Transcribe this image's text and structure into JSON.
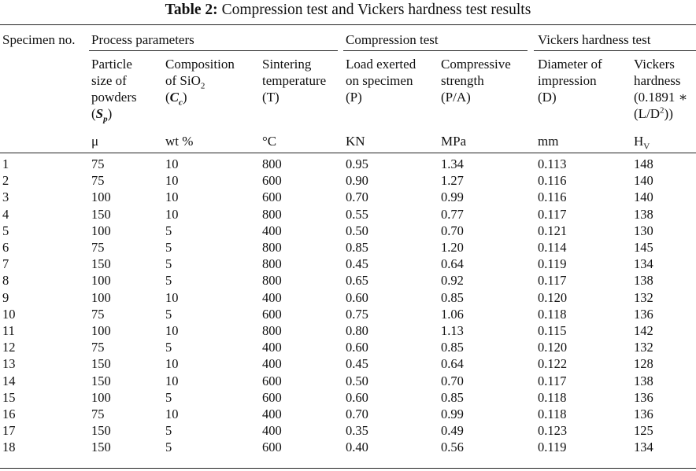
{
  "caption": {
    "label": "Table 2:",
    "text": "Compression test and Vickers hardness test results"
  },
  "header": {
    "specimen": "Specimen no.",
    "groups": {
      "process": "Process parameters",
      "compression": "Compression test",
      "vickers": "Vickers hardness test"
    },
    "columns": {
      "particle": {
        "line1": "Particle",
        "line2": "size of",
        "line3": "powders",
        "symbol_open": "(",
        "symbol": "S",
        "symbol_sub": "p",
        "symbol_close": ")"
      },
      "composition": {
        "line1": "Composition",
        "line2_prefix": "of SiO",
        "line2_sub": "2",
        "symbol_open": "(",
        "symbol": "C",
        "symbol_sub": "c",
        "symbol_close": ")"
      },
      "sintering": {
        "line1": "Sintering",
        "line2": "temperature",
        "line3": "(T)"
      },
      "load": {
        "line1": "Load exerted",
        "line2": "on specimen",
        "line3": "(P)"
      },
      "strength": {
        "line1": "Compressive",
        "line2": "strength",
        "line3": "(P/A)"
      },
      "diameter": {
        "line1": "Diameter of",
        "line2": "impression",
        "line3": "(D)"
      },
      "hardness": {
        "line1": "Vickers",
        "line2": "hardness",
        "line3": "(0.1891 ∗",
        "line4_prefix": "(L/D",
        "line4_sup": "2",
        "line4_suffix": "))"
      }
    },
    "units": {
      "particle": "μ",
      "composition": "wt %",
      "sintering": "°C",
      "load": "KN",
      "strength": "MPa",
      "diameter": "mm",
      "hardness_main": "H",
      "hardness_sub": "V"
    }
  },
  "rows": [
    [
      "1",
      "75",
      "10",
      "800",
      "0.95",
      "1.34",
      "0.113",
      "148"
    ],
    [
      "2",
      "75",
      "10",
      "600",
      "0.90",
      "1.27",
      "0.116",
      "140"
    ],
    [
      "3",
      "100",
      "10",
      "600",
      "0.70",
      "0.99",
      "0.116",
      "140"
    ],
    [
      "4",
      "150",
      "10",
      "800",
      "0.55",
      "0.77",
      "0.117",
      "138"
    ],
    [
      "5",
      "100",
      "5",
      "400",
      "0.50",
      "0.70",
      "0.121",
      "130"
    ],
    [
      "6",
      "75",
      "5",
      "800",
      "0.85",
      "1.20",
      "0.114",
      "145"
    ],
    [
      "7",
      "150",
      "5",
      "800",
      "0.45",
      "0.64",
      "0.119",
      "134"
    ],
    [
      "8",
      "100",
      "5",
      "800",
      "0.65",
      "0.92",
      "0.117",
      "138"
    ],
    [
      "9",
      "100",
      "10",
      "400",
      "0.60",
      "0.85",
      "0.120",
      "132"
    ],
    [
      "10",
      "75",
      "5",
      "600",
      "0.75",
      "1.06",
      "0.118",
      "136"
    ],
    [
      "11",
      "100",
      "10",
      "800",
      "0.80",
      "1.13",
      "0.115",
      "142"
    ],
    [
      "12",
      "75",
      "5",
      "400",
      "0.60",
      "0.85",
      "0.120",
      "132"
    ],
    [
      "13",
      "150",
      "10",
      "400",
      "0.45",
      "0.64",
      "0.122",
      "128"
    ],
    [
      "14",
      "150",
      "10",
      "600",
      "0.50",
      "0.70",
      "0.117",
      "138"
    ],
    [
      "15",
      "100",
      "5",
      "600",
      "0.60",
      "0.85",
      "0.118",
      "136"
    ],
    [
      "16",
      "75",
      "10",
      "400",
      "0.70",
      "0.99",
      "0.118",
      "136"
    ],
    [
      "17",
      "150",
      "5",
      "400",
      "0.35",
      "0.49",
      "0.123",
      "125"
    ],
    [
      "18",
      "150",
      "5",
      "600",
      "0.40",
      "0.56",
      "0.119",
      "134"
    ]
  ]
}
